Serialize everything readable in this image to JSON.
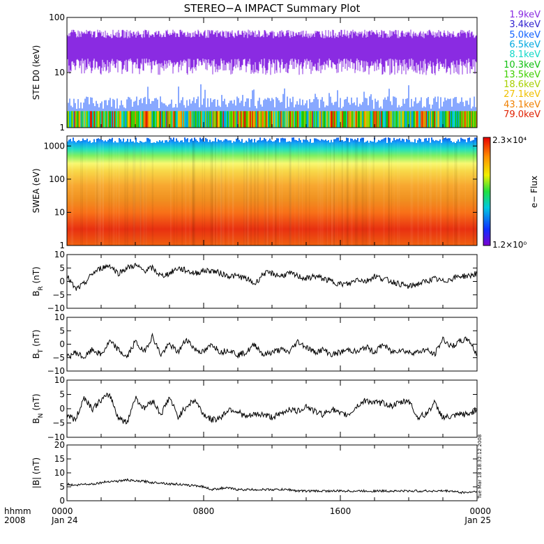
{
  "title": "STEREO−A IMPACT Summary Plot",
  "legend": [
    {
      "label": "1.9keV",
      "color": "#8a2be2"
    },
    {
      "label": "3.4keV",
      "color": "#3020d0"
    },
    {
      "label": "5.0keV",
      "color": "#1060ff"
    },
    {
      "label": "6.5keV",
      "color": "#00a8e0"
    },
    {
      "label": "8.1keV",
      "color": "#10d8c8"
    },
    {
      "label": "10.3keV",
      "color": "#10c010"
    },
    {
      "label": "13.5keV",
      "color": "#40d000"
    },
    {
      "label": "18.6keV",
      "color": "#a8d000"
    },
    {
      "label": "27.1keV",
      "color": "#f0c000"
    },
    {
      "label": "43.1keV",
      "color": "#f08000"
    },
    {
      "label": "79.0keV",
      "color": "#e02000"
    }
  ],
  "colorbar": {
    "label": "e− Flux",
    "max_label": "2.3×10⁴",
    "min_label": "1.2×10⁰"
  },
  "timestamp_note": "Tue Mar 18 18:32:12 2008",
  "x_axis": {
    "left_label_1": "hhmm",
    "left_label_2": "2008",
    "ticks": [
      {
        "label": "0000",
        "sub": "Jan 24",
        "hour": 0
      },
      {
        "label": "0800",
        "sub": "",
        "hour": 8
      },
      {
        "label": "1600",
        "sub": "",
        "hour": 16
      },
      {
        "label": "0000",
        "sub": "Jan 25",
        "hour": 24
      }
    ]
  },
  "chart_data": [
    {
      "type": "line",
      "panel": "ste",
      "ylabel": "STE D0 (keV)",
      "yscale": "log",
      "ylim": [
        1,
        100
      ],
      "y_ticks": [
        "1",
        "10",
        "100"
      ],
      "x": [
        0,
        24
      ],
      "series": [
        {
          "name": "1.9keV",
          "values": [
            30,
            30
          ]
        },
        {
          "name": "3.4keV",
          "values": [
            1.8,
            1.8
          ]
        },
        {
          "name": "5.0keV",
          "values": [
            1.5,
            1.5
          ]
        }
      ]
    },
    {
      "type": "heatmap",
      "panel": "swea",
      "ylabel": "SWEA (eV)",
      "yscale": "log",
      "ylim": [
        1,
        2000
      ],
      "y_ticks": [
        "1",
        "10",
        "100",
        "1000"
      ],
      "z_range": [
        1.2,
        23000
      ]
    },
    {
      "type": "line",
      "panel": "br",
      "ylabel": "B_R (nT)",
      "ylim": [
        -10,
        10
      ],
      "y_ticks": [
        "−10",
        "−5",
        "0",
        "5",
        "10"
      ],
      "x": [
        0,
        0.5,
        1,
        1.5,
        2,
        2.5,
        3,
        3.5,
        4,
        4.5,
        5,
        5.5,
        6,
        6.5,
        7,
        7.5,
        8,
        8.5,
        9,
        9.5,
        10,
        10.5,
        11,
        11.5,
        12,
        12.5,
        13,
        13.5,
        14,
        14.5,
        15,
        15.5,
        16,
        16.5,
        17,
        17.5,
        18,
        18.5,
        19,
        19.5,
        20,
        20.5,
        21,
        21.5,
        22,
        22.5,
        23,
        23.5,
        24
      ],
      "series": [
        {
          "values": [
            2,
            -3,
            -1,
            3,
            5,
            6,
            3,
            5,
            6,
            4,
            5,
            2,
            3,
            5,
            4,
            3,
            4,
            4,
            3,
            2,
            2,
            1,
            -1,
            3,
            3,
            2,
            3,
            2,
            1,
            2,
            1,
            0,
            -1,
            -1,
            1,
            0,
            2,
            1,
            0,
            -1,
            -2,
            -1,
            0,
            1,
            0,
            1,
            2,
            2,
            3
          ]
        }
      ]
    },
    {
      "type": "line",
      "panel": "bt",
      "ylabel": "B_T (nT)",
      "ylim": [
        -10,
        10
      ],
      "y_ticks": [
        "−10",
        "−5",
        "0",
        "5",
        "10"
      ],
      "x": [
        0,
        0.5,
        1,
        1.5,
        2,
        2.5,
        3,
        3.5,
        4,
        4.5,
        5,
        5.5,
        6,
        6.5,
        7,
        7.5,
        8,
        8.5,
        9,
        9.5,
        10,
        10.5,
        11,
        11.5,
        12,
        12.5,
        13,
        13.5,
        14,
        14.5,
        15,
        15.5,
        16,
        16.5,
        17,
        17.5,
        18,
        18.5,
        19,
        19.5,
        20,
        20.5,
        21,
        21.5,
        22,
        22.5,
        23,
        23.5,
        24
      ],
      "series": [
        {
          "values": [
            -5,
            -3,
            -5,
            -2,
            -4,
            1,
            -2,
            -5,
            1,
            -3,
            3,
            -4,
            0,
            -3,
            2,
            -2,
            -3,
            0,
            -3,
            -2,
            -4,
            -3,
            0,
            -4,
            -3,
            -2,
            -3,
            1,
            -1,
            -3,
            -2,
            -4,
            -3,
            -2,
            -3,
            -1,
            -3,
            0,
            -3,
            -2,
            -3,
            -3,
            -2,
            -4,
            2,
            -1,
            1,
            2,
            -4
          ]
        }
      ]
    },
    {
      "type": "line",
      "panel": "bn",
      "ylabel": "B_N (nT)",
      "ylim": [
        -10,
        10
      ],
      "y_ticks": [
        "−10",
        "−5",
        "0",
        "5",
        "10"
      ],
      "x": [
        0,
        0.5,
        1,
        1.5,
        2,
        2.5,
        3,
        3.5,
        4,
        4.5,
        5,
        5.5,
        6,
        6.5,
        7,
        7.5,
        8,
        8.5,
        9,
        9.5,
        10,
        10.5,
        11,
        11.5,
        12,
        12.5,
        13,
        13.5,
        14,
        14.5,
        15,
        15.5,
        16,
        16.5,
        17,
        17.5,
        18,
        18.5,
        19,
        19.5,
        20,
        20.5,
        21,
        21.5,
        22,
        22.5,
        23,
        23.5,
        24
      ],
      "series": [
        {
          "values": [
            -2,
            -4,
            4,
            0,
            3,
            5,
            -3,
            -5,
            4,
            0,
            3,
            -2,
            4,
            -3,
            1,
            3,
            -2,
            -4,
            -3,
            0,
            -1,
            -3,
            -2,
            -2,
            -3,
            -2,
            0,
            -1,
            1,
            -1,
            -2,
            0,
            -2,
            -2,
            1,
            3,
            2,
            2,
            1,
            2,
            3,
            -3,
            -2,
            2,
            -3,
            -3,
            -2,
            -2,
            0
          ]
        }
      ]
    },
    {
      "type": "line",
      "panel": "bmag",
      "ylabel": "|B| (nT)",
      "ylim": [
        0,
        20
      ],
      "y_ticks": [
        "0",
        "5",
        "10",
        "15",
        "20"
      ],
      "x": [
        0,
        0.5,
        1,
        1.5,
        2,
        2.5,
        3,
        3.5,
        4,
        4.5,
        5,
        5.5,
        6,
        6.5,
        7,
        7.5,
        8,
        8.5,
        9,
        9.5,
        10,
        10.5,
        11,
        11.5,
        12,
        12.5,
        13,
        13.5,
        14,
        14.5,
        15,
        15.5,
        16,
        16.5,
        17,
        17.5,
        18,
        18.5,
        19,
        19.5,
        20,
        20.5,
        21,
        21.5,
        22,
        22.5,
        23,
        23.5,
        24
      ],
      "series": [
        {
          "values": [
            6,
            5.5,
            6,
            6,
            6.5,
            7,
            7,
            7.5,
            7,
            7,
            6.5,
            6.5,
            6,
            6,
            5.5,
            5.5,
            5,
            4,
            4.5,
            4.5,
            4,
            4,
            4,
            4,
            4,
            4,
            4,
            3.5,
            3.5,
            3.5,
            3.5,
            3.5,
            3.5,
            3.5,
            3.5,
            3.5,
            3.5,
            3.5,
            3.5,
            3.5,
            3.5,
            3.5,
            3.5,
            3.5,
            3.5,
            3.5,
            3,
            3,
            3.5
          ]
        }
      ]
    }
  ]
}
